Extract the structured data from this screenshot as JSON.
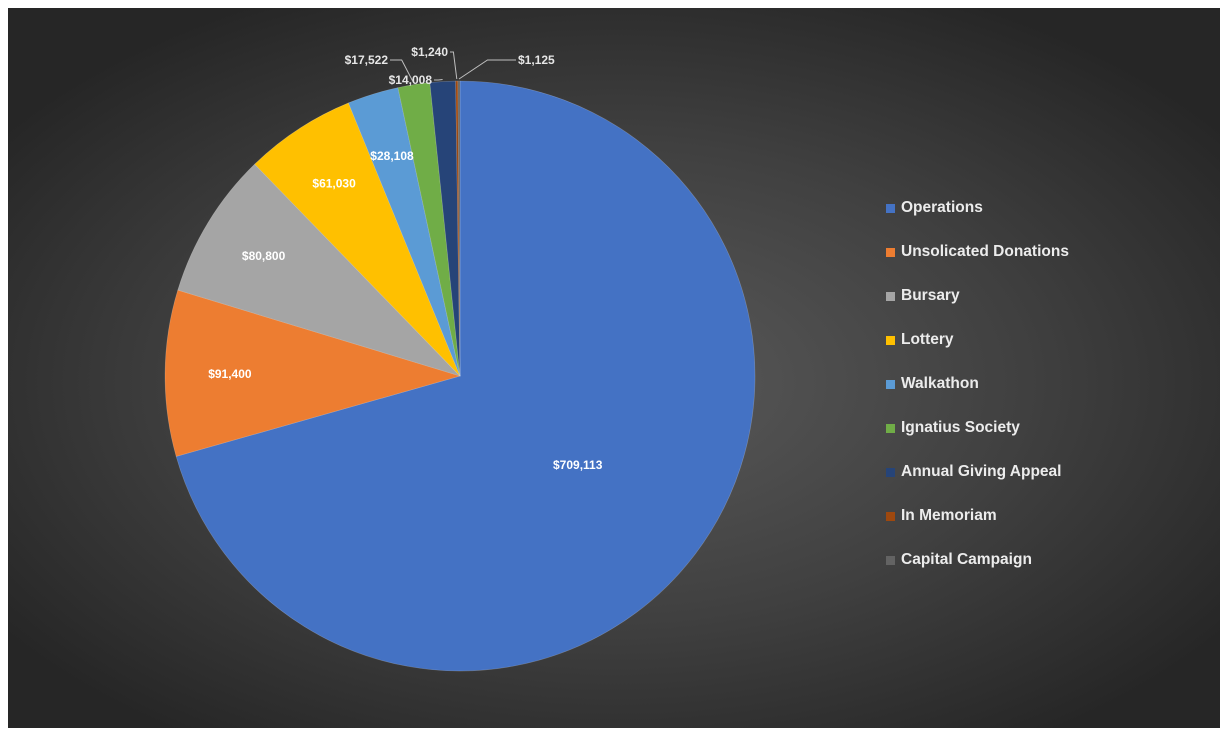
{
  "chart_data": {
    "type": "pie",
    "categories": [
      "Operations",
      "Unsolicated Donations",
      "Bursary",
      "Lottery",
      "Walkathon",
      "Ignatius Society",
      "Annual Giving Appeal",
      "In Memoriam",
      "Capital Campaign"
    ],
    "values": [
      709113,
      91400,
      80800,
      61030,
      28108,
      17522,
      14008,
      1240,
      1125
    ],
    "data_labels": [
      "$709,113",
      "$91,400",
      "$80,800",
      "$61,030",
      "$28,108",
      "$17,522",
      "$14,008",
      "$1,240",
      "$1,125"
    ],
    "colors": [
      "#4472C4",
      "#ED7D31",
      "#A5A5A5",
      "#FFC000",
      "#5B9BD5",
      "#70AD47",
      "#264478",
      "#9E480E",
      "#636363"
    ],
    "legend_position": "right",
    "start_angle_deg": 0,
    "direction": "clockwise"
  }
}
